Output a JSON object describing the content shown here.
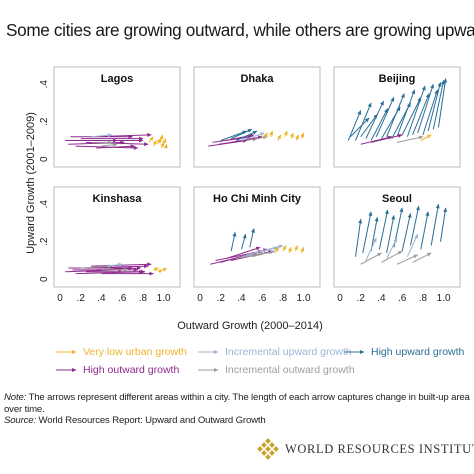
{
  "title": "Some cities are growing outward, while others are growing upward",
  "colors": {
    "very_low": "#f0b429",
    "high_outward": "#8e2b8e",
    "incremental_upward": "#9fb3d6",
    "incremental_outward": "#9e9e9e",
    "high_upward": "#2a6f97",
    "panel_border": "#bbbbbb"
  },
  "legend": [
    {
      "label": "Very low urban growth",
      "key": "very_low"
    },
    {
      "label": "High outward growth",
      "key": "high_outward"
    },
    {
      "label": "Incremental upward growth",
      "key": "incremental_upward"
    },
    {
      "label": "Incremental outward growth",
      "key": "incremental_outward"
    },
    {
      "label": "High upward growth",
      "key": "high_upward"
    }
  ],
  "note": {
    "note_label": "Note:",
    "note_text": " The arrows represent different areas within a city. The length of each arrow captures change in built-up area over time.",
    "source_label": "Source:",
    "source_text": " World Resources Report: Upward and Outward Growth"
  },
  "logo_text": "WORLD RESOURCES INSTITUTE",
  "chart_data": {
    "type": "scatter",
    "xlabel": "Outward Growth (2000–2014)",
    "ylabel": "Upward Growth (2001–2009)",
    "xlim": [
      0,
      1.1
    ],
    "ylim": [
      -0.02,
      0.46
    ],
    "x_ticks": [
      "0",
      ".2",
      ".4",
      ".6",
      ".8",
      "1.0"
    ],
    "y_ticks": [
      "0",
      ".2",
      ".4"
    ],
    "grid": false,
    "layout": "2 rows x 3 columns of small multiples",
    "panels": [
      {
        "city": "Lagos",
        "arrows": [
          {
            "cat": "high_outward",
            "x0": 0.05,
            "y0": 0.1,
            "x1": 0.55,
            "y1": 0.1
          },
          {
            "cat": "high_outward",
            "x0": 0.08,
            "y0": 0.08,
            "x1": 0.62,
            "y1": 0.09
          },
          {
            "cat": "high_outward",
            "x0": 0.1,
            "y0": 0.12,
            "x1": 0.7,
            "y1": 0.12
          },
          {
            "cat": "high_outward",
            "x0": 0.15,
            "y0": 0.07,
            "x1": 0.75,
            "y1": 0.06
          },
          {
            "cat": "high_outward",
            "x0": 0.2,
            "y0": 0.11,
            "x1": 0.8,
            "y1": 0.11
          },
          {
            "cat": "high_outward",
            "x0": 0.25,
            "y0": 0.09,
            "x1": 0.85,
            "y1": 0.08
          },
          {
            "cat": "high_outward",
            "x0": 0.3,
            "y0": 0.12,
            "x1": 0.88,
            "y1": 0.13
          },
          {
            "cat": "high_outward",
            "x0": 0.35,
            "y0": 0.06,
            "x1": 0.72,
            "y1": 0.07
          },
          {
            "cat": "high_outward",
            "x0": 0.4,
            "y0": 0.1,
            "x1": 0.8,
            "y1": 0.1
          },
          {
            "cat": "incremental_outward",
            "x0": 0.3,
            "y0": 0.09,
            "x1": 0.5,
            "y1": 0.09
          },
          {
            "cat": "incremental_outward",
            "x0": 0.4,
            "y0": 0.07,
            "x1": 0.55,
            "y1": 0.08
          },
          {
            "cat": "incremental_upward",
            "x0": 0.3,
            "y0": 0.12,
            "x1": 0.5,
            "y1": 0.13
          },
          {
            "cat": "very_low",
            "x0": 0.86,
            "y0": 0.09,
            "x1": 0.9,
            "y1": 0.12
          },
          {
            "cat": "very_low",
            "x0": 0.9,
            "y0": 0.07,
            "x1": 0.93,
            "y1": 0.1
          },
          {
            "cat": "very_low",
            "x0": 0.94,
            "y0": 0.08,
            "x1": 0.97,
            "y1": 0.11
          },
          {
            "cat": "very_low",
            "x0": 0.97,
            "y0": 0.09,
            "x1": 0.99,
            "y1": 0.13
          },
          {
            "cat": "very_low",
            "x0": 0.98,
            "y0": 0.06,
            "x1": 1.0,
            "y1": 0.09
          },
          {
            "cat": "very_low",
            "x0": 1.0,
            "y0": 0.08,
            "x1": 1.02,
            "y1": 0.11
          },
          {
            "cat": "very_low",
            "x0": 1.02,
            "y0": 0.06,
            "x1": 1.03,
            "y1": 0.08
          }
        ]
      },
      {
        "city": "Dhaka",
        "arrows": [
          {
            "cat": "high_outward",
            "x0": 0.08,
            "y0": 0.07,
            "x1": 0.45,
            "y1": 0.1
          },
          {
            "cat": "high_outward",
            "x0": 0.12,
            "y0": 0.09,
            "x1": 0.5,
            "y1": 0.12
          },
          {
            "cat": "high_outward",
            "x0": 0.18,
            "y0": 0.08,
            "x1": 0.55,
            "y1": 0.11
          },
          {
            "cat": "high_outward",
            "x0": 0.25,
            "y0": 0.1,
            "x1": 0.52,
            "y1": 0.13
          },
          {
            "cat": "high_outward",
            "x0": 0.3,
            "y0": 0.09,
            "x1": 0.6,
            "y1": 0.12
          },
          {
            "cat": "high_upward",
            "x0": 0.2,
            "y0": 0.1,
            "x1": 0.45,
            "y1": 0.15
          },
          {
            "cat": "high_upward",
            "x0": 0.3,
            "y0": 0.11,
            "x1": 0.5,
            "y1": 0.16
          },
          {
            "cat": "high_upward",
            "x0": 0.35,
            "y0": 0.1,
            "x1": 0.55,
            "y1": 0.15
          },
          {
            "cat": "incremental_upward",
            "x0": 0.4,
            "y0": 0.1,
            "x1": 0.62,
            "y1": 0.14
          },
          {
            "cat": "incremental_outward",
            "x0": 0.45,
            "y0": 0.1,
            "x1": 0.65,
            "y1": 0.12
          },
          {
            "cat": "very_low",
            "x0": 0.62,
            "y0": 0.11,
            "x1": 0.65,
            "y1": 0.14
          },
          {
            "cat": "very_low",
            "x0": 0.68,
            "y0": 0.12,
            "x1": 0.7,
            "y1": 0.15
          },
          {
            "cat": "very_low",
            "x0": 0.75,
            "y0": 0.1,
            "x1": 0.78,
            "y1": 0.13
          },
          {
            "cat": "very_low",
            "x0": 0.82,
            "y0": 0.12,
            "x1": 0.84,
            "y1": 0.15
          },
          {
            "cat": "very_low",
            "x0": 0.88,
            "y0": 0.11,
            "x1": 0.9,
            "y1": 0.14
          },
          {
            "cat": "very_low",
            "x0": 0.93,
            "y0": 0.1,
            "x1": 0.95,
            "y1": 0.13
          },
          {
            "cat": "very_low",
            "x0": 0.98,
            "y0": 0.11,
            "x1": 1.0,
            "y1": 0.14
          }
        ]
      },
      {
        "city": "Beijing",
        "arrows": [
          {
            "cat": "high_upward",
            "x0": 0.08,
            "y0": 0.1,
            "x1": 0.2,
            "y1": 0.26
          },
          {
            "cat": "high_upward",
            "x0": 0.1,
            "y0": 0.12,
            "x1": 0.28,
            "y1": 0.22
          },
          {
            "cat": "high_upward",
            "x0": 0.15,
            "y0": 0.1,
            "x1": 0.3,
            "y1": 0.3
          },
          {
            "cat": "high_upward",
            "x0": 0.2,
            "y0": 0.12,
            "x1": 0.36,
            "y1": 0.24
          },
          {
            "cat": "high_upward",
            "x0": 0.25,
            "y0": 0.11,
            "x1": 0.42,
            "y1": 0.31
          },
          {
            "cat": "high_upward",
            "x0": 0.3,
            "y0": 0.1,
            "x1": 0.46,
            "y1": 0.27
          },
          {
            "cat": "high_upward",
            "x0": 0.35,
            "y0": 0.12,
            "x1": 0.52,
            "y1": 0.33
          },
          {
            "cat": "high_upward",
            "x0": 0.4,
            "y0": 0.11,
            "x1": 0.58,
            "y1": 0.28
          },
          {
            "cat": "high_upward",
            "x0": 0.45,
            "y0": 0.12,
            "x1": 0.62,
            "y1": 0.35
          },
          {
            "cat": "high_upward",
            "x0": 0.5,
            "y0": 0.11,
            "x1": 0.68,
            "y1": 0.3
          },
          {
            "cat": "high_upward",
            "x0": 0.55,
            "y0": 0.12,
            "x1": 0.72,
            "y1": 0.37
          },
          {
            "cat": "high_upward",
            "x0": 0.6,
            "y0": 0.13,
            "x1": 0.78,
            "y1": 0.33
          },
          {
            "cat": "high_upward",
            "x0": 0.65,
            "y0": 0.12,
            "x1": 0.82,
            "y1": 0.39
          },
          {
            "cat": "high_upward",
            "x0": 0.7,
            "y0": 0.13,
            "x1": 0.86,
            "y1": 0.35
          },
          {
            "cat": "high_upward",
            "x0": 0.75,
            "y0": 0.14,
            "x1": 0.9,
            "y1": 0.4
          },
          {
            "cat": "high_upward",
            "x0": 0.8,
            "y0": 0.13,
            "x1": 0.94,
            "y1": 0.37
          },
          {
            "cat": "high_upward",
            "x0": 0.85,
            "y0": 0.15,
            "x1": 0.97,
            "y1": 0.41
          },
          {
            "cat": "high_upward",
            "x0": 0.9,
            "y0": 0.16,
            "x1": 1.0,
            "y1": 0.42
          },
          {
            "cat": "high_upward",
            "x0": 0.95,
            "y0": 0.17,
            "x1": 1.02,
            "y1": 0.43
          },
          {
            "cat": "high_outward",
            "x0": 0.2,
            "y0": 0.08,
            "x1": 0.5,
            "y1": 0.12
          },
          {
            "cat": "high_outward",
            "x0": 0.3,
            "y0": 0.09,
            "x1": 0.6,
            "y1": 0.13
          },
          {
            "cat": "incremental_outward",
            "x0": 0.55,
            "y0": 0.09,
            "x1": 0.8,
            "y1": 0.12
          },
          {
            "cat": "very_low",
            "x0": 0.78,
            "y0": 0.1,
            "x1": 0.88,
            "y1": 0.13
          }
        ]
      },
      {
        "city": "Kinshasa",
        "arrows": [
          {
            "cat": "high_outward",
            "x0": 0.05,
            "y0": 0.04,
            "x1": 0.6,
            "y1": 0.05
          },
          {
            "cat": "high_outward",
            "x0": 0.08,
            "y0": 0.06,
            "x1": 0.7,
            "y1": 0.06
          },
          {
            "cat": "high_outward",
            "x0": 0.12,
            "y0": 0.05,
            "x1": 0.75,
            "y1": 0.05
          },
          {
            "cat": "high_outward",
            "x0": 0.15,
            "y0": 0.03,
            "x1": 0.8,
            "y1": 0.04
          },
          {
            "cat": "high_outward",
            "x0": 0.2,
            "y0": 0.06,
            "x1": 0.85,
            "y1": 0.07
          },
          {
            "cat": "high_outward",
            "x0": 0.25,
            "y0": 0.04,
            "x1": 0.82,
            "y1": 0.04
          },
          {
            "cat": "high_outward",
            "x0": 0.3,
            "y0": 0.07,
            "x1": 0.88,
            "y1": 0.08
          },
          {
            "cat": "high_outward",
            "x0": 0.35,
            "y0": 0.05,
            "x1": 0.78,
            "y1": 0.06
          },
          {
            "cat": "high_outward",
            "x0": 0.4,
            "y0": 0.03,
            "x1": 0.9,
            "y1": 0.03
          },
          {
            "cat": "incremental_outward",
            "x0": 0.2,
            "y0": 0.06,
            "x1": 0.5,
            "y1": 0.07
          },
          {
            "cat": "incremental_outward",
            "x0": 0.4,
            "y0": 0.05,
            "x1": 0.65,
            "y1": 0.05
          },
          {
            "cat": "incremental_upward",
            "x0": 0.45,
            "y0": 0.07,
            "x1": 0.6,
            "y1": 0.08
          },
          {
            "cat": "very_low",
            "x0": 0.9,
            "y0": 0.05,
            "x1": 0.95,
            "y1": 0.06
          },
          {
            "cat": "very_low",
            "x0": 0.95,
            "y0": 0.04,
            "x1": 0.99,
            "y1": 0.05
          },
          {
            "cat": "very_low",
            "x0": 1.0,
            "y0": 0.05,
            "x1": 1.03,
            "y1": 0.06
          }
        ]
      },
      {
        "city": "Ho Chi Minh City",
        "arrows": [
          {
            "cat": "high_outward",
            "x0": 0.1,
            "y0": 0.08,
            "x1": 0.55,
            "y1": 0.14
          },
          {
            "cat": "high_outward",
            "x0": 0.15,
            "y0": 0.1,
            "x1": 0.6,
            "y1": 0.15
          },
          {
            "cat": "high_outward",
            "x0": 0.2,
            "y0": 0.09,
            "x1": 0.65,
            "y1": 0.16
          },
          {
            "cat": "high_outward",
            "x0": 0.25,
            "y0": 0.11,
            "x1": 0.58,
            "y1": 0.17
          },
          {
            "cat": "high_outward",
            "x0": 0.3,
            "y0": 0.1,
            "x1": 0.7,
            "y1": 0.15
          },
          {
            "cat": "incremental_upward",
            "x0": 0.4,
            "y0": 0.12,
            "x1": 0.75,
            "y1": 0.17
          },
          {
            "cat": "incremental_upward",
            "x0": 0.45,
            "y0": 0.13,
            "x1": 0.8,
            "y1": 0.18
          },
          {
            "cat": "incremental_outward",
            "x0": 0.35,
            "y0": 0.11,
            "x1": 0.62,
            "y1": 0.14
          },
          {
            "cat": "incremental_outward",
            "x0": 0.5,
            "y0": 0.12,
            "x1": 0.72,
            "y1": 0.15
          },
          {
            "cat": "high_upward",
            "x0": 0.3,
            "y0": 0.15,
            "x1": 0.34,
            "y1": 0.25
          },
          {
            "cat": "high_upward",
            "x0": 0.4,
            "y0": 0.16,
            "x1": 0.44,
            "y1": 0.24
          },
          {
            "cat": "high_upward",
            "x0": 0.48,
            "y0": 0.17,
            "x1": 0.52,
            "y1": 0.27
          },
          {
            "cat": "very_low",
            "x0": 0.72,
            "y0": 0.14,
            "x1": 0.76,
            "y1": 0.17
          },
          {
            "cat": "very_low",
            "x0": 0.8,
            "y0": 0.15,
            "x1": 0.83,
            "y1": 0.18
          },
          {
            "cat": "very_low",
            "x0": 0.86,
            "y0": 0.14,
            "x1": 0.88,
            "y1": 0.17
          },
          {
            "cat": "very_low",
            "x0": 0.92,
            "y0": 0.15,
            "x1": 0.94,
            "y1": 0.18
          },
          {
            "cat": "very_low",
            "x0": 0.98,
            "y0": 0.14,
            "x1": 1.0,
            "y1": 0.17
          }
        ]
      },
      {
        "city": "Seoul",
        "arrows": [
          {
            "cat": "high_upward",
            "x0": 0.15,
            "y0": 0.12,
            "x1": 0.2,
            "y1": 0.32
          },
          {
            "cat": "high_upward",
            "x0": 0.22,
            "y0": 0.14,
            "x1": 0.3,
            "y1": 0.36
          },
          {
            "cat": "high_upward",
            "x0": 0.3,
            "y0": 0.15,
            "x1": 0.36,
            "y1": 0.33
          },
          {
            "cat": "high_upward",
            "x0": 0.38,
            "y0": 0.16,
            "x1": 0.46,
            "y1": 0.37
          },
          {
            "cat": "high_upward",
            "x0": 0.45,
            "y0": 0.14,
            "x1": 0.52,
            "y1": 0.34
          },
          {
            "cat": "high_upward",
            "x0": 0.52,
            "y0": 0.17,
            "x1": 0.6,
            "y1": 0.38
          },
          {
            "cat": "high_upward",
            "x0": 0.6,
            "y0": 0.15,
            "x1": 0.68,
            "y1": 0.35
          },
          {
            "cat": "high_upward",
            "x0": 0.68,
            "y0": 0.18,
            "x1": 0.76,
            "y1": 0.39
          },
          {
            "cat": "high_upward",
            "x0": 0.78,
            "y0": 0.16,
            "x1": 0.85,
            "y1": 0.36
          },
          {
            "cat": "high_upward",
            "x0": 0.88,
            "y0": 0.18,
            "x1": 0.95,
            "y1": 0.4
          },
          {
            "cat": "high_upward",
            "x0": 0.97,
            "y0": 0.2,
            "x1": 1.02,
            "y1": 0.38
          },
          {
            "cat": "incremental_upward",
            "x0": 0.25,
            "y0": 0.1,
            "x1": 0.35,
            "y1": 0.22
          },
          {
            "cat": "incremental_upward",
            "x0": 0.45,
            "y0": 0.11,
            "x1": 0.55,
            "y1": 0.22
          },
          {
            "cat": "incremental_upward",
            "x0": 0.65,
            "y0": 0.12,
            "x1": 0.75,
            "y1": 0.24
          },
          {
            "cat": "incremental_outward",
            "x0": 0.2,
            "y0": 0.08,
            "x1": 0.4,
            "y1": 0.14
          },
          {
            "cat": "incremental_outward",
            "x0": 0.4,
            "y0": 0.09,
            "x1": 0.6,
            "y1": 0.15
          },
          {
            "cat": "incremental_outward",
            "x0": 0.55,
            "y0": 0.08,
            "x1": 0.75,
            "y1": 0.13
          },
          {
            "cat": "incremental_outward",
            "x0": 0.7,
            "y0": 0.09,
            "x1": 0.88,
            "y1": 0.14
          }
        ]
      }
    ]
  }
}
